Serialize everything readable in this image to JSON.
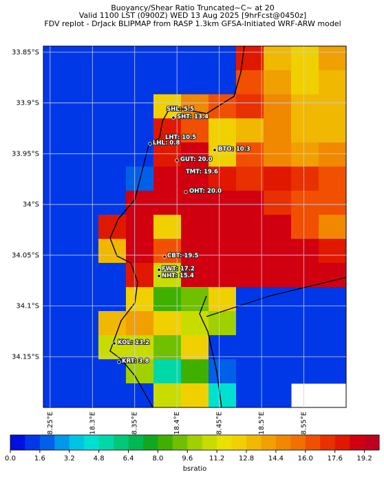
{
  "chart_data": {
    "type": "heatmap",
    "title": [
      "Buoyancy/Shear Ratio Truncated~C~    at 20",
      "Valid 1100 LST (0900Z) WED 13 Aug 2025 [9hrFcst@0450z]",
      "FDV replot - DrJack BLIPMAP from RASP 1.3km GFSA-Initiated WRF-ARW model"
    ],
    "xlim": [
      18.242,
      18.6
    ],
    "ylim": [
      -33.844,
      -34.2
    ],
    "xticks": [
      {
        "value": 18.25,
        "label": "18.25°E"
      },
      {
        "value": 18.3,
        "label": "18.3°E"
      },
      {
        "value": 18.35,
        "label": "18.35°E"
      },
      {
        "value": 18.4,
        "label": "18.4°E"
      },
      {
        "value": 18.45,
        "label": "18.45°E"
      },
      {
        "value": 18.5,
        "label": "18.5°E"
      },
      {
        "value": 18.55,
        "label": "18.55°E"
      }
    ],
    "yticks": [
      {
        "value": -33.85,
        "label": "33.85°S"
      },
      {
        "value": -33.9,
        "label": "33.9°S"
      },
      {
        "value": -33.95,
        "label": "33.95°S"
      },
      {
        "value": -34.0,
        "label": "34°S"
      },
      {
        "value": -34.05,
        "label": "34.05°S"
      },
      {
        "value": -34.1,
        "label": "34.1°S"
      },
      {
        "value": -34.15,
        "label": "34.15°S"
      }
    ],
    "grid": true,
    "values": [
      [
        1,
        1,
        1,
        1,
        1,
        1,
        1,
        18,
        13,
        12,
        14
      ],
      [
        1,
        1,
        1,
        1,
        1,
        1,
        1,
        16,
        14,
        12,
        13
      ],
      [
        1,
        1,
        1,
        1,
        12,
        15,
        16,
        17,
        15,
        13,
        13
      ],
      [
        1,
        1,
        1,
        1,
        18,
        16,
        12,
        13,
        15,
        13,
        13
      ],
      [
        1,
        1,
        1,
        1,
        18,
        19,
        12,
        16,
        15,
        14,
        15
      ],
      [
        1,
        1,
        1,
        2,
        19,
        19,
        18,
        17,
        18,
        17,
        16
      ],
      [
        1,
        1,
        1,
        19,
        19,
        19,
        19,
        19,
        17,
        16,
        16
      ],
      [
        1,
        1,
        18,
        19,
        12,
        19,
        19,
        19,
        19,
        16,
        15
      ],
      [
        1,
        1,
        13,
        19,
        16,
        19,
        19,
        19,
        19,
        19,
        18
      ],
      [
        1,
        1,
        1,
        18,
        11,
        19,
        19,
        19,
        19,
        19,
        19
      ],
      [
        1,
        1,
        1,
        12,
        8,
        9,
        12,
        1,
        1,
        1,
        1
      ],
      [
        1,
        1,
        13,
        14,
        12,
        11,
        10,
        1,
        1,
        1,
        1
      ],
      [
        1,
        1,
        11,
        11,
        9,
        12,
        1,
        1,
        1,
        1,
        1
      ],
      [
        1,
        1,
        1,
        10,
        5,
        8,
        2,
        1,
        1,
        1,
        1
      ],
      [
        1,
        1,
        1,
        1,
        11,
        12,
        4,
        1,
        1,
        null,
        null
      ]
    ],
    "colorbar": {
      "label": "bsratio",
      "clim": [
        0,
        20
      ],
      "ticks": [
        {
          "value": 0,
          "label": "0.0"
        },
        1.6,
        3.2,
        4.8,
        6.4,
        {
          "value": 8,
          "label": "8.0"
        },
        9.6,
        11.2,
        12.8,
        14.4,
        {
          "value": 16,
          "label": "16.0"
        },
        17.6,
        19.2
      ],
      "colors": [
        "#0010e0",
        "#0038e8",
        "#0060e8",
        "#0098e8",
        "#00c4e4",
        "#00e0d0",
        "#00d8a8",
        "#00c878",
        "#00b850",
        "#10a820",
        "#40b000",
        "#70c000",
        "#a0d000",
        "#c8dc00",
        "#e8e000",
        "#f0d000",
        "#f0b800",
        "#f0a000",
        "#f08800",
        "#f07000",
        "#f05000",
        "#e83000",
        "#e01800",
        "#d00010",
        "#c00020"
      ]
    },
    "stations": [
      "SHL: 5.5",
      "SHT: 13.4",
      "LHT: 10.5",
      "LHL: 0.8",
      "BTO: 10.3",
      "GUT: 20.0",
      "TMT: 19.6",
      "OHT: 20.0",
      "CBT: 19.5",
      "FWT: 17.2",
      "NHT: 15.4",
      "KOL: 13.2",
      "KRT: 3.8"
    ]
  }
}
